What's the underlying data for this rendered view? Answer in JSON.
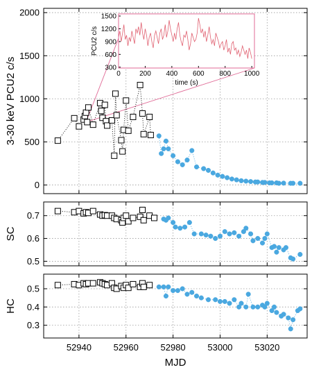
{
  "colors": {
    "pca_square": "#000000",
    "blue_circle": "#4aa8e0",
    "inset_line": "#e06070",
    "inset_frame": "#e06a96"
  },
  "xlabel": "MJD",
  "chart_data": [
    {
      "type": "scatter",
      "ylabel": "3-30 keV PCU2 c/s",
      "xlim": [
        52925,
        53037
      ],
      "ylim": [
        -100,
        2050
      ],
      "yticks": [
        0,
        500,
        1000,
        1500,
        2000
      ],
      "xticks": [
        52940,
        52960,
        52980,
        53000,
        53020
      ],
      "grid": true,
      "series": [
        {
          "marker": "open-square",
          "points": [
            [
              52931,
              515
            ],
            [
              52938,
              775
            ],
            [
              52940,
              680
            ],
            [
              52942,
              760
            ],
            [
              52942.5,
              800
            ],
            [
              52943,
              840
            ],
            [
              52943.5,
              730
            ],
            [
              52944,
              900
            ],
            [
              52946,
              700
            ],
            [
              52949,
              950
            ],
            [
              52949.5,
              860
            ],
            [
              52950,
              780
            ],
            [
              52951,
              930
            ],
            [
              52951.5,
              740
            ],
            [
              52952,
              690
            ],
            [
              52954,
              750
            ],
            [
              52955,
              340
            ],
            [
              52955.5,
              1060
            ],
            [
              52956,
              810
            ],
            [
              52958,
              520
            ],
            [
              52958.5,
              390
            ],
            [
              52959,
              640
            ],
            [
              52960,
              980
            ],
            [
              52961,
              630
            ],
            [
              52963,
              790
            ],
            [
              52966,
              1160
            ],
            [
              52967,
              830
            ],
            [
              52967.5,
              590
            ],
            [
              52970,
              790
            ],
            [
              52970.5,
              580
            ]
          ]
        },
        {
          "marker": "filled-circle",
          "points": [
            [
              52974,
              570
            ],
            [
              52975,
              365
            ],
            [
              52976,
              420
            ],
            [
              52977,
              510
            ],
            [
              52978,
              420
            ],
            [
              52980,
              340
            ],
            [
              52982,
              270
            ],
            [
              52984,
              235
            ],
            [
              52986,
              290
            ],
            [
              52988,
              400
            ],
            [
              52990,
              210
            ],
            [
              52993,
              190
            ],
            [
              52995,
              170
            ],
            [
              52997,
              140
            ],
            [
              52999,
              115
            ],
            [
              53001,
              100
            ],
            [
              53003,
              85
            ],
            [
              53005,
              70
            ],
            [
              53007,
              60
            ],
            [
              53009,
              50
            ],
            [
              53011,
              45
            ],
            [
              53013,
              40
            ],
            [
              53015,
              35
            ],
            [
              53016,
              35
            ],
            [
              53018,
              30
            ],
            [
              53019,
              30
            ],
            [
              53021,
              25
            ],
            [
              53022,
              25
            ],
            [
              53024,
              25
            ],
            [
              53025,
              20
            ],
            [
              53027,
              22
            ],
            [
              53030,
              20
            ],
            [
              53031,
              20
            ],
            [
              53034,
              20
            ]
          ]
        }
      ]
    },
    {
      "type": "scatter",
      "ylabel": "SC",
      "xlim": [
        52925,
        53037
      ],
      "ylim": [
        0.48,
        0.76
      ],
      "yticks": [
        0.5,
        0.6,
        0.7
      ],
      "xticks": [
        52940,
        52960,
        52980,
        53000,
        53020
      ],
      "grid": true,
      "series": [
        {
          "marker": "open-square",
          "points": [
            [
              52931,
              0.72
            ],
            [
              52938,
              0.715
            ],
            [
              52940,
              0.72
            ],
            [
              52942,
              0.71
            ],
            [
              52943,
              0.715
            ],
            [
              52944,
              0.712
            ],
            [
              52946,
              0.72
            ],
            [
              52949,
              0.705
            ],
            [
              52950,
              0.7
            ],
            [
              52951,
              0.702
            ],
            [
              52952,
              0.7
            ],
            [
              52954,
              0.7
            ],
            [
              52955,
              0.69
            ],
            [
              52956,
              0.685
            ],
            [
              52958,
              0.68
            ],
            [
              52958.5,
              0.67
            ],
            [
              52959,
              0.69
            ],
            [
              52960,
              0.7
            ],
            [
              52961,
              0.675
            ],
            [
              52963,
              0.69
            ],
            [
              52966,
              0.695
            ],
            [
              52967,
              0.725
            ],
            [
              52967.5,
              0.68
            ],
            [
              52970,
              0.7
            ],
            [
              52972,
              0.69
            ]
          ]
        },
        {
          "marker": "filled-circle",
          "points": [
            [
              52976,
              0.685
            ],
            [
              52977,
              0.68
            ],
            [
              52978,
              0.69
            ],
            [
              52980,
              0.67
            ],
            [
              52981,
              0.65
            ],
            [
              52983,
              0.645
            ],
            [
              52985,
              0.65
            ],
            [
              52987,
              0.67
            ],
            [
              52989,
              0.62
            ],
            [
              52992,
              0.62
            ],
            [
              52994,
              0.615
            ],
            [
              52996,
              0.61
            ],
            [
              52998,
              0.6
            ],
            [
              53000,
              0.61
            ],
            [
              53002,
              0.63
            ],
            [
              53004,
              0.62
            ],
            [
              53006,
              0.625
            ],
            [
              53008,
              0.61
            ],
            [
              53010,
              0.63
            ],
            [
              53011,
              0.645
            ],
            [
              53013,
              0.62
            ],
            [
              53014,
              0.59
            ],
            [
              53016,
              0.6
            ],
            [
              53018,
              0.58
            ],
            [
              53019,
              0.6
            ],
            [
              53020,
              0.62
            ],
            [
              53022,
              0.56
            ],
            [
              53023,
              0.565
            ],
            [
              53024,
              0.54
            ],
            [
              53025,
              0.56
            ],
            [
              53027,
              0.55
            ],
            [
              53028,
              0.56
            ],
            [
              53030,
              0.515
            ],
            [
              53031,
              0.51
            ],
            [
              53034,
              0.53
            ]
          ]
        }
      ]
    },
    {
      "type": "scatter",
      "ylabel": "HC",
      "xlim": [
        52925,
        53037
      ],
      "ylim": [
        0.23,
        0.58
      ],
      "yticks": [
        0.3,
        0.4,
        0.5
      ],
      "xticks": [
        52940,
        52960,
        52980,
        53000,
        53020
      ],
      "xticklabels": [
        "52940",
        "52960",
        "52980",
        "53000",
        "53020"
      ],
      "grid": true,
      "series": [
        {
          "marker": "open-square",
          "points": [
            [
              52931,
              0.52
            ],
            [
              52938,
              0.525
            ],
            [
              52940,
              0.52
            ],
            [
              52942,
              0.53
            ],
            [
              52943,
              0.525
            ],
            [
              52944,
              0.53
            ],
            [
              52946,
              0.53
            ],
            [
              52949,
              0.535
            ],
            [
              52950,
              0.53
            ],
            [
              52951,
              0.525
            ],
            [
              52952,
              0.52
            ],
            [
              52954,
              0.53
            ],
            [
              52955,
              0.505
            ],
            [
              52956,
              0.5
            ],
            [
              52958,
              0.515
            ],
            [
              52959,
              0.505
            ],
            [
              52960,
              0.52
            ],
            [
              52961,
              0.505
            ],
            [
              52963,
              0.525
            ],
            [
              52966,
              0.51
            ],
            [
              52967,
              0.53
            ],
            [
              52967.5,
              0.51
            ],
            [
              52970,
              0.52
            ]
          ]
        },
        {
          "marker": "filled-circle",
          "points": [
            [
              52974,
              0.51
            ],
            [
              52976,
              0.51
            ],
            [
              52977,
              0.46
            ],
            [
              52978,
              0.51
            ],
            [
              52980,
              0.49
            ],
            [
              52982,
              0.49
            ],
            [
              52984,
              0.5
            ],
            [
              52986,
              0.47
            ],
            [
              52988,
              0.48
            ],
            [
              52990,
              0.46
            ],
            [
              52992,
              0.45
            ],
            [
              52995,
              0.44
            ],
            [
              52998,
              0.44
            ],
            [
              53000,
              0.43
            ],
            [
              53002,
              0.43
            ],
            [
              53004,
              0.42
            ],
            [
              53006,
              0.44
            ],
            [
              53008,
              0.4
            ],
            [
              53009,
              0.42
            ],
            [
              53011,
              0.4
            ],
            [
              53012,
              0.47
            ],
            [
              53014,
              0.4
            ],
            [
              53016,
              0.4
            ],
            [
              53018,
              0.41
            ],
            [
              53019,
              0.4
            ],
            [
              53020,
              0.42
            ],
            [
              53022,
              0.38
            ],
            [
              53023,
              0.4
            ],
            [
              53024,
              0.37
            ],
            [
              53026,
              0.35
            ],
            [
              53027,
              0.36
            ],
            [
              53029,
              0.34
            ],
            [
              53030,
              0.28
            ],
            [
              53031,
              0.33
            ],
            [
              53033,
              0.38
            ],
            [
              53034,
              0.39
            ]
          ]
        }
      ]
    },
    {
      "type": "line",
      "inset": true,
      "xlabel": "time (s)",
      "ylabel": "PCU2 c/s",
      "xlim": [
        0,
        1020
      ],
      "ylim": [
        280,
        1550
      ],
      "xticks": [
        0,
        200,
        400,
        600,
        800,
        1000
      ],
      "yticks": [
        300,
        600,
        900,
        1200,
        1500
      ],
      "x": [
        0,
        10,
        20,
        30,
        40,
        50,
        60,
        70,
        80,
        90,
        100,
        110,
        120,
        130,
        140,
        150,
        160,
        170,
        180,
        190,
        200,
        210,
        220,
        230,
        240,
        250,
        260,
        270,
        280,
        290,
        300,
        310,
        320,
        330,
        340,
        350,
        360,
        370,
        380,
        390,
        400,
        410,
        420,
        430,
        440,
        450,
        460,
        470,
        480,
        490,
        500,
        510,
        520,
        530,
        540,
        550,
        560,
        570,
        580,
        590,
        600,
        610,
        620,
        630,
        640,
        650,
        660,
        670,
        680,
        690,
        700,
        710,
        720,
        730,
        740,
        750,
        760,
        770,
        780,
        790,
        800,
        810,
        820,
        830,
        840,
        850,
        860,
        870,
        880,
        890,
        900,
        910,
        920,
        930,
        940,
        950,
        960,
        970,
        980,
        990,
        1000
      ],
      "y": [
        1000,
        1150,
        900,
        1100,
        1300,
        950,
        1050,
        800,
        1000,
        900,
        1150,
        1000,
        850,
        1200,
        1100,
        1250,
        1050,
        1350,
        1100,
        950,
        1200,
        1050,
        800,
        1000,
        1100,
        900,
        750,
        1050,
        1150,
        1000,
        850,
        1100,
        1200,
        950,
        1050,
        1300,
        1000,
        1150,
        1400,
        1200,
        1050,
        900,
        1100,
        950,
        1200,
        1350,
        1050,
        900,
        800,
        1050,
        1000,
        1150,
        950,
        700,
        850,
        1100,
        1000,
        900,
        950,
        1100,
        1450,
        1300,
        1100,
        1200,
        1000,
        1150,
        900,
        1050,
        1250,
        1000,
        850,
        950,
        800,
        1100,
        1000,
        900,
        750,
        850,
        900,
        700,
        800,
        950,
        650,
        750,
        600,
        850,
        900,
        700,
        750,
        600,
        700,
        550,
        650,
        800,
        700,
        600,
        700,
        500,
        750,
        650,
        500
      ]
    }
  ]
}
